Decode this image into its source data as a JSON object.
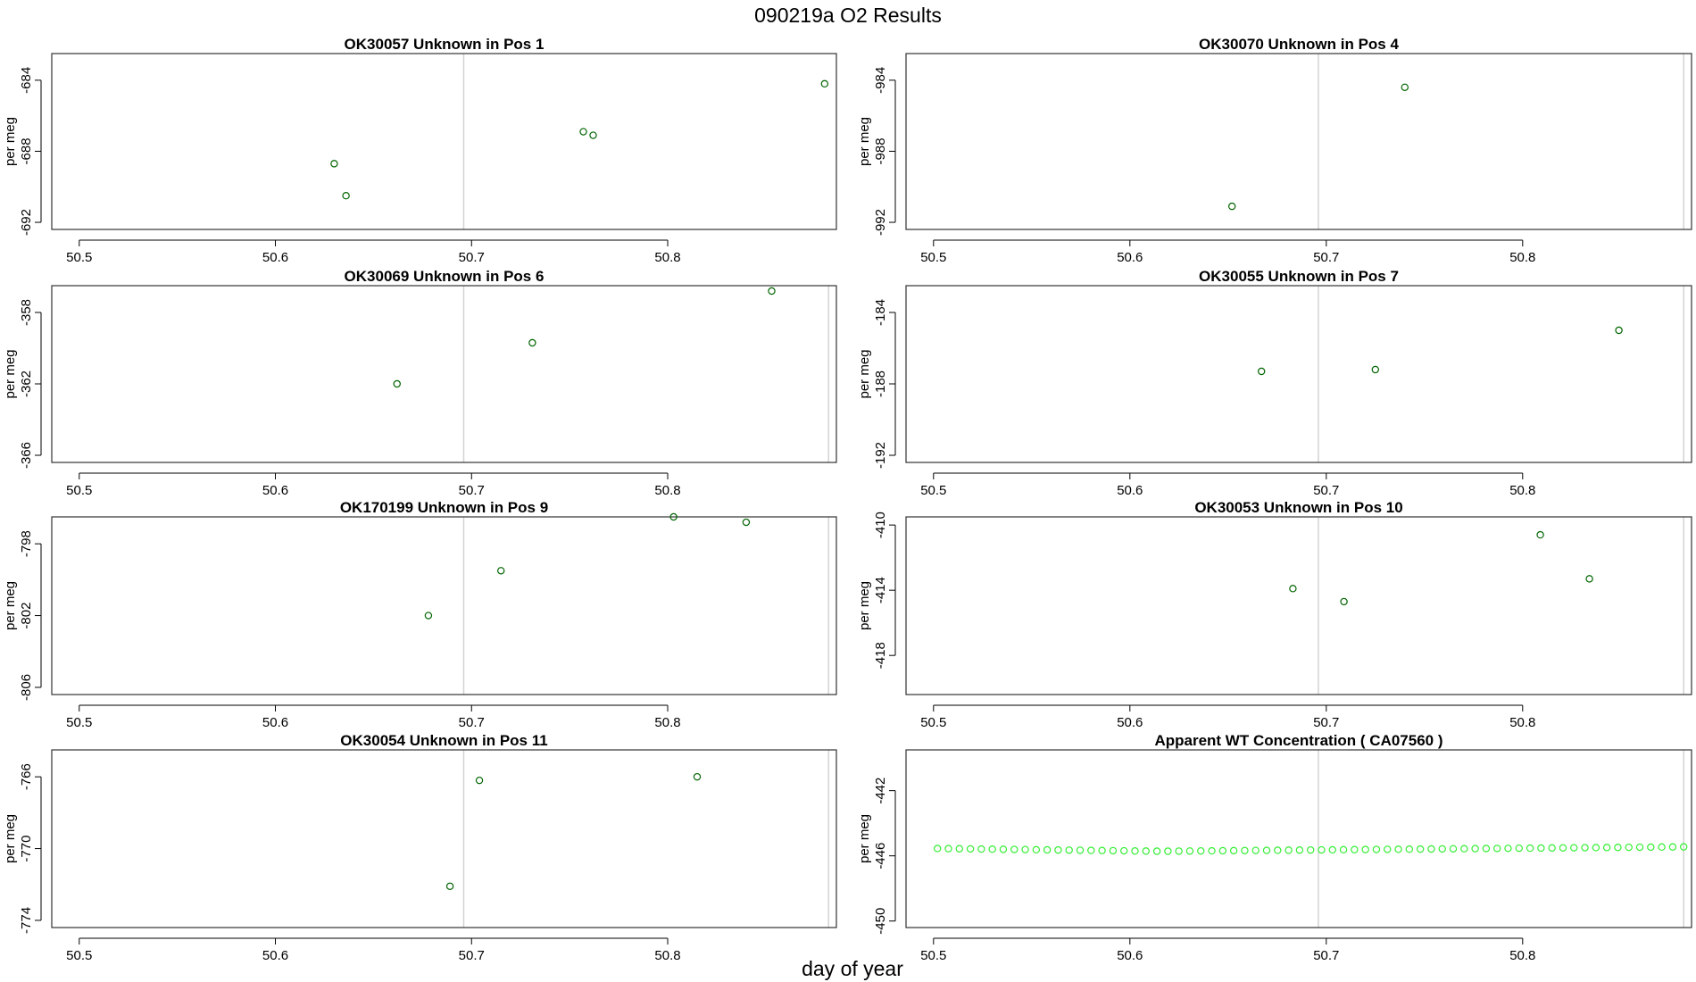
{
  "figure": {
    "title": "090219a  O2 Results",
    "xlabel": "day of year"
  },
  "chart_data": [
    {
      "type": "scatter",
      "title": "OK30057    Unknown in Pos 1",
      "ylabel": "per meg",
      "xlim": [
        50.486,
        50.886
      ],
      "ylim": [
        -692.4,
        -682.5
      ],
      "xticks": [
        50.5,
        50.6,
        50.7,
        50.8
      ],
      "yticks": [
        -684,
        -688,
        -692
      ],
      "vlines": [
        50.696
      ],
      "point_color": "#006400",
      "points": [
        {
          "x": 50.63,
          "y": -688.7
        },
        {
          "x": 50.636,
          "y": -690.5
        },
        {
          "x": 50.757,
          "y": -686.9
        },
        {
          "x": 50.762,
          "y": -687.1
        },
        {
          "x": 50.88,
          "y": -684.2
        }
      ]
    },
    {
      "type": "scatter",
      "title": "OK30070    Unknown in Pos 4",
      "ylabel": "per meg",
      "xlim": [
        50.486,
        50.886
      ],
      "ylim": [
        -992.4,
        -982.5
      ],
      "xticks": [
        50.5,
        50.6,
        50.7,
        50.8
      ],
      "yticks": [
        -984,
        -988,
        -992
      ],
      "vlines": [
        50.696,
        50.882
      ],
      "point_color": "#006400",
      "points": [
        {
          "x": 50.652,
          "y": -991.1
        },
        {
          "x": 50.74,
          "y": -984.4
        }
      ]
    },
    {
      "type": "scatter",
      "title": "OK30069    Unknown in Pos 6",
      "ylabel": "per meg",
      "xlim": [
        50.486,
        50.886
      ],
      "ylim": [
        -366.4,
        -356.5
      ],
      "xticks": [
        50.5,
        50.6,
        50.7,
        50.8
      ],
      "yticks": [
        -358,
        -362,
        -366
      ],
      "vlines": [
        50.696,
        50.882
      ],
      "point_color": "#006400",
      "points": [
        {
          "x": 50.662,
          "y": -362.0
        },
        {
          "x": 50.731,
          "y": -359.7
        },
        {
          "x": 50.853,
          "y": -356.8
        }
      ]
    },
    {
      "type": "scatter",
      "title": "OK30055    Unknown in Pos 7",
      "ylabel": "per meg",
      "xlim": [
        50.486,
        50.886
      ],
      "ylim": [
        -192.4,
        -182.5
      ],
      "xticks": [
        50.5,
        50.6,
        50.7,
        50.8
      ],
      "yticks": [
        -184,
        -188,
        -192
      ],
      "vlines": [
        50.696,
        50.882
      ],
      "point_color": "#006400",
      "points": [
        {
          "x": 50.667,
          "y": -187.3
        },
        {
          "x": 50.725,
          "y": -187.2
        },
        {
          "x": 50.849,
          "y": -185.0
        }
      ]
    },
    {
      "type": "scatter",
      "title": "OK170199    Unknown in Pos 9",
      "ylabel": "per meg",
      "xlim": [
        50.486,
        50.886
      ],
      "ylim": [
        -806.4,
        -796.5
      ],
      "xticks": [
        50.5,
        50.6,
        50.7,
        50.8
      ],
      "yticks": [
        -798,
        -802,
        -806
      ],
      "vlines": [
        50.696,
        50.882
      ],
      "point_color": "#006400",
      "points": [
        {
          "x": 50.678,
          "y": -802.0
        },
        {
          "x": 50.715,
          "y": -799.5
        },
        {
          "x": 50.803,
          "y": -796.5
        },
        {
          "x": 50.84,
          "y": -796.8
        }
      ]
    },
    {
      "type": "scatter",
      "title": "OK30053    Unknown in Pos 10",
      "ylabel": "per meg",
      "xlim": [
        50.486,
        50.886
      ],
      "ylim": [
        -420.4,
        -409.5
      ],
      "xticks": [
        50.5,
        50.6,
        50.7,
        50.8
      ],
      "yticks": [
        -410,
        -414,
        -418
      ],
      "vlines": [
        50.696,
        50.882
      ],
      "point_color": "#006400",
      "points": [
        {
          "x": 50.683,
          "y": -413.9
        },
        {
          "x": 50.709,
          "y": -414.7
        },
        {
          "x": 50.809,
          "y": -410.6
        },
        {
          "x": 50.834,
          "y": -413.3
        }
      ]
    },
    {
      "type": "scatter",
      "title": "OK30054    Unknown in Pos 11",
      "ylabel": "per meg",
      "xlim": [
        50.486,
        50.886
      ],
      "ylim": [
        -774.4,
        -764.5
      ],
      "xticks": [
        50.5,
        50.6,
        50.7,
        50.8
      ],
      "yticks": [
        -766,
        -770,
        -774
      ],
      "vlines": [
        50.696,
        50.882
      ],
      "point_color": "#006400",
      "points": [
        {
          "x": 50.689,
          "y": -772.1
        },
        {
          "x": 50.704,
          "y": -766.2
        },
        {
          "x": 50.815,
          "y": -766.0
        }
      ]
    },
    {
      "type": "scatter",
      "title": "Apparent WT Concentration ( CA07560 )",
      "ylabel": "per meg",
      "xlim": [
        50.486,
        50.886
      ],
      "ylim": [
        -450.4,
        -439.5
      ],
      "xticks": [
        50.5,
        50.6,
        50.7,
        50.8
      ],
      "yticks": [
        -442,
        -446,
        -450
      ],
      "vlines": [
        50.696,
        50.882
      ],
      "point_color": "#33ee33",
      "series_generated": {
        "x_start": 50.502,
        "x_end": 50.882,
        "count": 69,
        "y_start": -445.55,
        "y_mid": -445.72,
        "y_end": -445.45
      }
    }
  ]
}
